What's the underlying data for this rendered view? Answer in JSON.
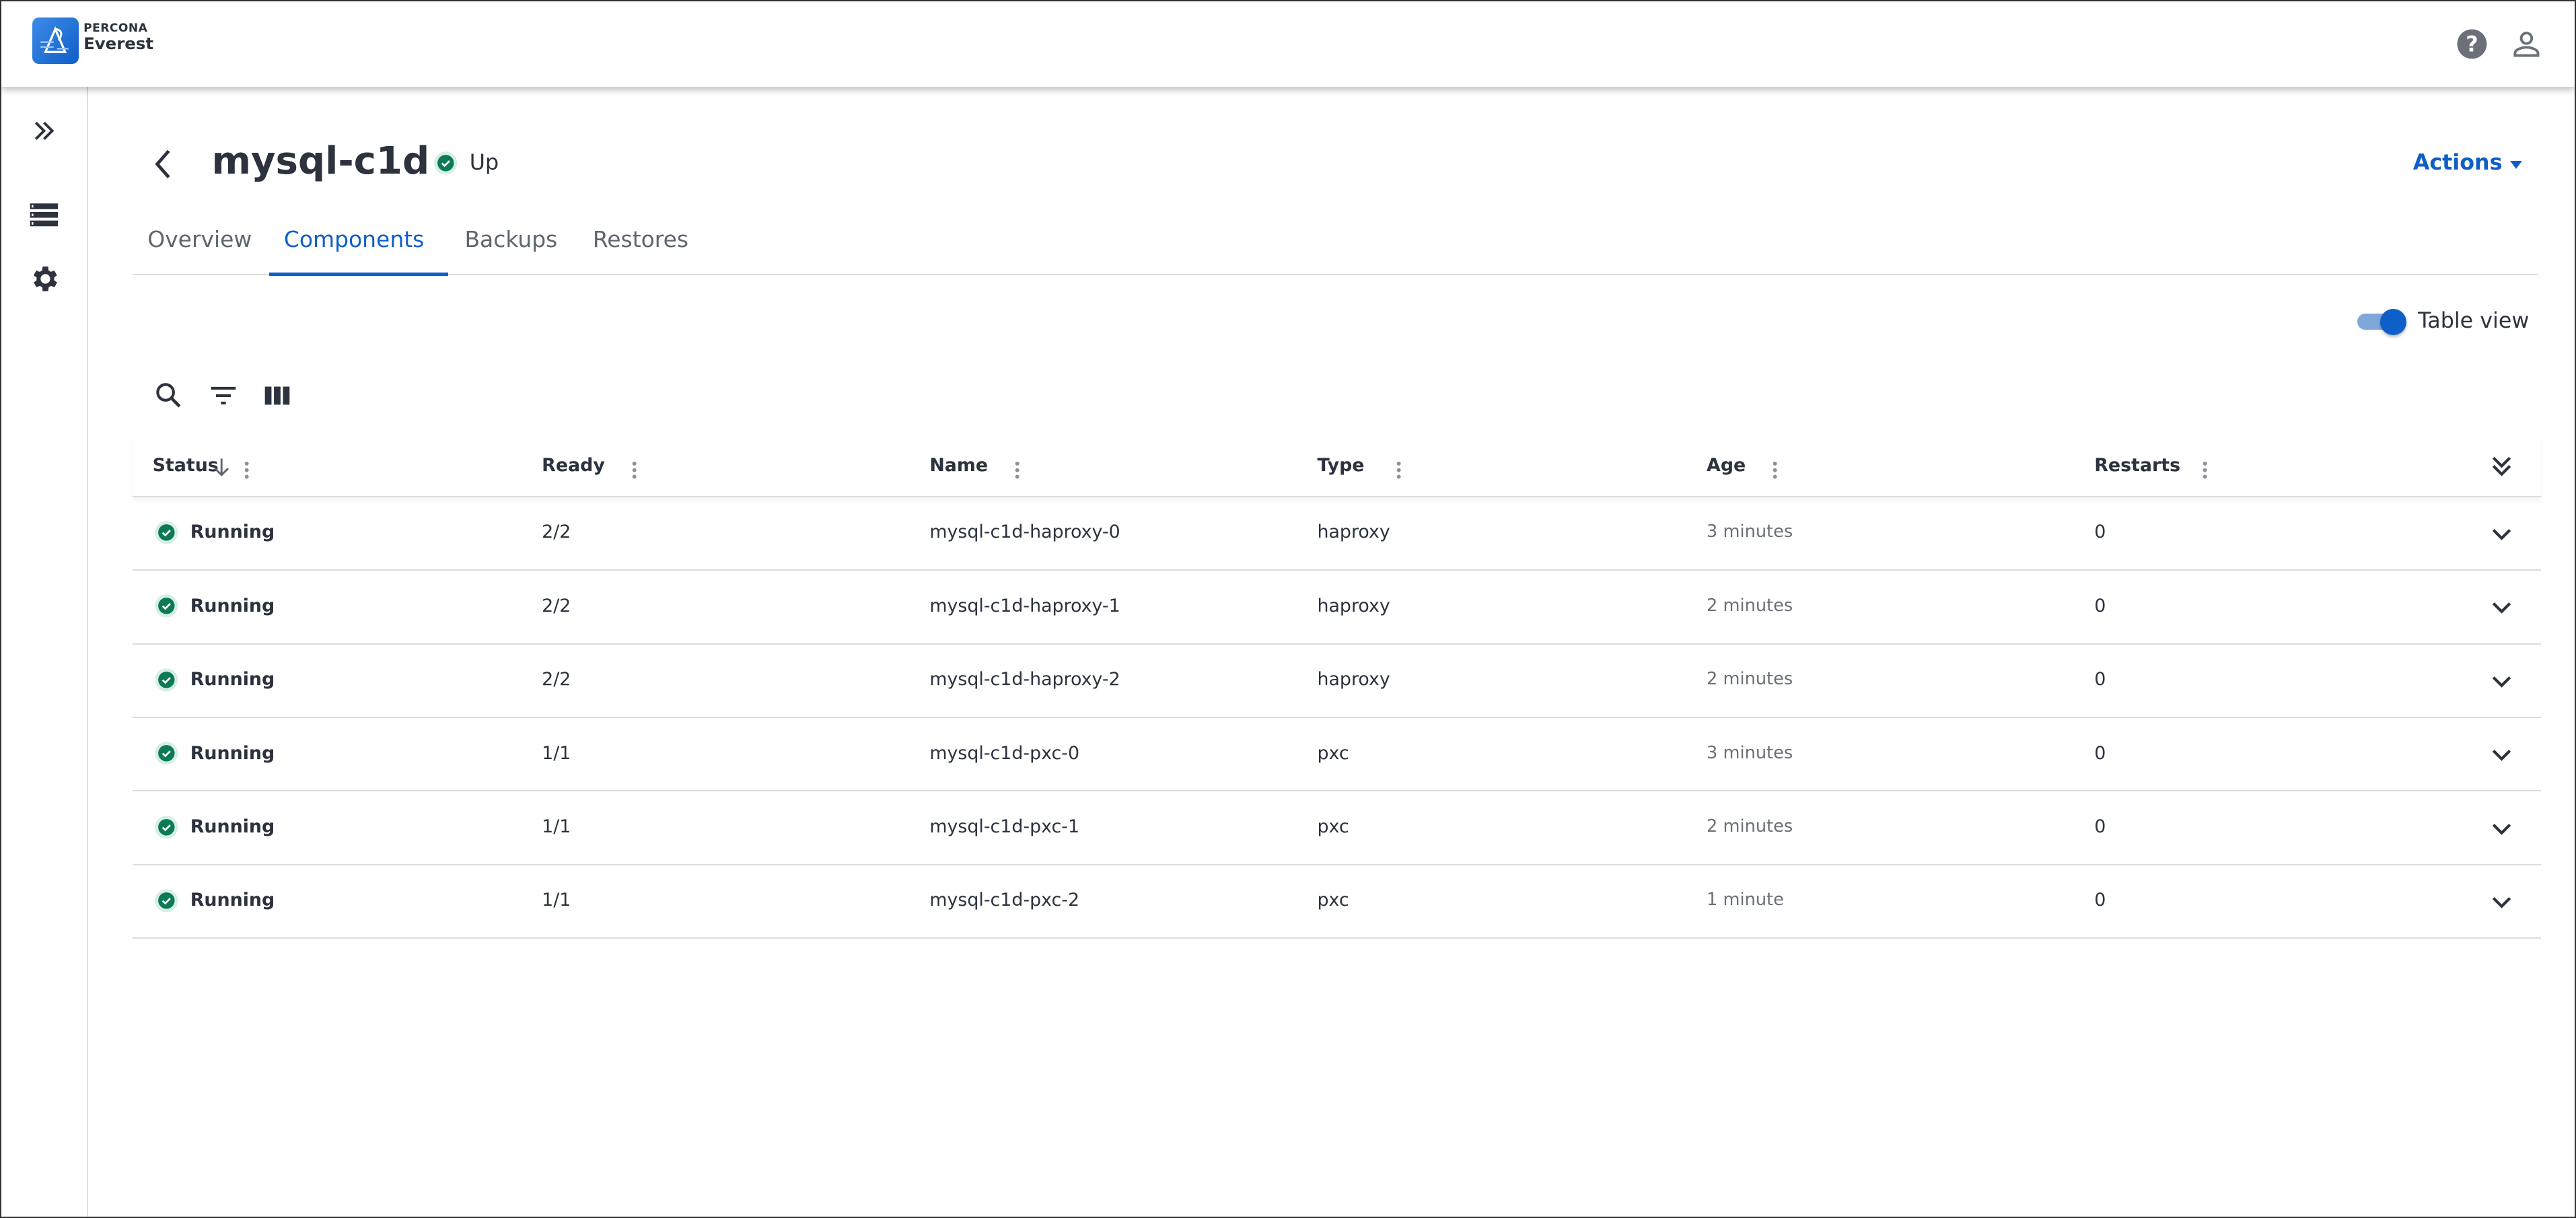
{
  "brand": {
    "line1": "PERCONA",
    "line2": "Everest"
  },
  "topbar": {
    "icons": [
      "help-icon",
      "user-icon"
    ]
  },
  "sidebar": {
    "items": [
      "expand-icon",
      "databases-icon",
      "settings-icon"
    ]
  },
  "page": {
    "title": "mysql-c1d",
    "status": "Up",
    "actions_label": "Actions"
  },
  "tabs": [
    {
      "label": "Overview"
    },
    {
      "label": "Components",
      "active": true
    },
    {
      "label": "Backups"
    },
    {
      "label": "Restores"
    }
  ],
  "view_toggle": {
    "label": "Table view",
    "on": true
  },
  "colors": {
    "accent": "#0e5fc7",
    "success": "#0b7a55",
    "text": "#2c323e"
  },
  "table": {
    "columns": [
      "Status",
      "Ready",
      "Name",
      "Type",
      "Age",
      "Restarts"
    ],
    "sort": {
      "column": "Status",
      "direction": "desc"
    },
    "rows": [
      {
        "status": "Running",
        "ready": "2/2",
        "name": "mysql-c1d-haproxy-0",
        "type": "haproxy",
        "age": "3 minutes",
        "restarts": "0"
      },
      {
        "status": "Running",
        "ready": "2/2",
        "name": "mysql-c1d-haproxy-1",
        "type": "haproxy",
        "age": "2 minutes",
        "restarts": "0"
      },
      {
        "status": "Running",
        "ready": "2/2",
        "name": "mysql-c1d-haproxy-2",
        "type": "haproxy",
        "age": "2 minutes",
        "restarts": "0"
      },
      {
        "status": "Running",
        "ready": "1/1",
        "name": "mysql-c1d-pxc-0",
        "type": "pxc",
        "age": "3 minutes",
        "restarts": "0"
      },
      {
        "status": "Running",
        "ready": "1/1",
        "name": "mysql-c1d-pxc-1",
        "type": "pxc",
        "age": "2 minutes",
        "restarts": "0"
      },
      {
        "status": "Running",
        "ready": "1/1",
        "name": "mysql-c1d-pxc-2",
        "type": "pxc",
        "age": "1 minute",
        "restarts": "0"
      }
    ]
  }
}
